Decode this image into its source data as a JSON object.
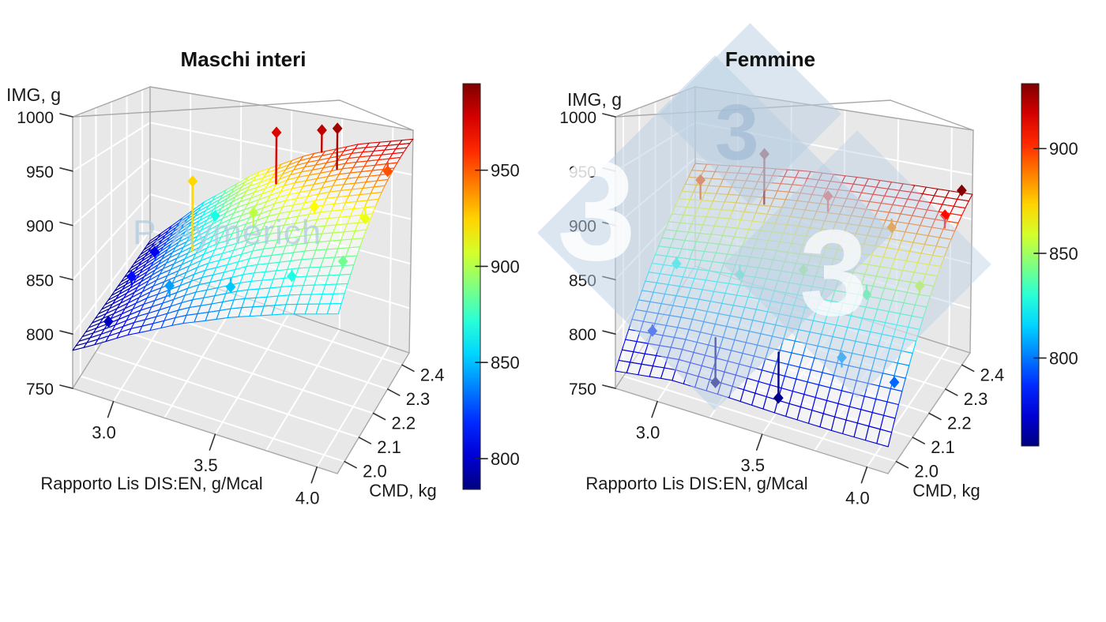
{
  "figure": {
    "background": "#ffffff"
  },
  "watermark_logo": {
    "glyphs": [
      "3",
      "3",
      "3"
    ],
    "color": "#b7cde2"
  },
  "chart_data": [
    {
      "type": "surface3d-wireframe",
      "title": "Maschi interi",
      "xlabel": "Rapporto Lis DIS:EN, g/Mcal",
      "ylabel": "CMD, kg",
      "zlabel": "IMG, g",
      "watermark": "P. Aymerich",
      "colormap": "jet",
      "x_range": [
        2.8,
        4.1
      ],
      "y_range": [
        1.95,
        2.45
      ],
      "z_range": [
        750,
        1000
      ],
      "x_ticks": [
        "3.0",
        "3.5",
        "4.0"
      ],
      "x_tick_values": [
        3.0,
        3.5,
        4.0
      ],
      "y_ticks": [
        "2.0",
        "2.1",
        "2.2",
        "2.3",
        "2.4"
      ],
      "y_tick_values": [
        2.0,
        2.1,
        2.2,
        2.3,
        2.4
      ],
      "z_ticks": [
        "750",
        "800",
        "850",
        "900",
        "950",
        "1000"
      ],
      "z_tick_values": [
        750,
        800,
        850,
        900,
        950,
        1000
      ],
      "x_grid_values": [
        3.0,
        3.25,
        3.5,
        3.75,
        4.0
      ],
      "y_grid_values": [
        2.0,
        2.1,
        2.2,
        2.3,
        2.4
      ],
      "z_grid_values": [
        800,
        850,
        900,
        950
      ],
      "surface_x": [
        2.8,
        3.06,
        3.32,
        3.58,
        3.84,
        4.1
      ],
      "surface_y": [
        1.95,
        2.05,
        2.15,
        2.25,
        2.35,
        2.45
      ],
      "surface_z": [
        [
          785,
          810,
          829,
          842,
          851,
          857
        ],
        [
          785,
          819,
          846,
          864,
          875,
          883
        ],
        [
          785,
          829,
          863,
          886,
          900,
          910
        ],
        [
          785,
          838,
          879,
          907,
          925,
          937
        ],
        [
          785,
          847,
          896,
          929,
          949,
          963
        ],
        [
          785,
          857,
          912,
          949,
          974,
          990
        ]
      ],
      "points": [
        {
          "x": 2.9,
          "y": 2.05,
          "img": 797
        },
        {
          "x": 2.9,
          "y": 2.2,
          "img": 812
        },
        {
          "x": 2.9,
          "y": 2.35,
          "img": 806
        },
        {
          "x": 3.2,
          "y": 2.05,
          "img": 843
        },
        {
          "x": 3.2,
          "y": 2.2,
          "img": 924
        },
        {
          "x": 3.2,
          "y": 2.35,
          "img": 868
        },
        {
          "x": 3.5,
          "y": 2.05,
          "img": 852
        },
        {
          "x": 3.5,
          "y": 2.2,
          "img": 902
        },
        {
          "x": 3.5,
          "y": 2.35,
          "img": 975
        },
        {
          "x": 3.8,
          "y": 2.05,
          "img": 869
        },
        {
          "x": 3.8,
          "y": 2.2,
          "img": 916
        },
        {
          "x": 3.8,
          "y": 2.35,
          "img": 988
        },
        {
          "x": 4.05,
          "y": 2.05,
          "img": 886
        },
        {
          "x": 4.05,
          "y": 2.2,
          "img": 912
        },
        {
          "x": 4.05,
          "y": 2.35,
          "img": 952
        },
        {
          "x": 3.65,
          "y": 2.45,
          "img": 982
        }
      ],
      "colorbar": {
        "tick_labels": [
          "950",
          "900",
          "850",
          "800"
        ],
        "tick_values": [
          950,
          900,
          850,
          800
        ],
        "vmin": 784,
        "vmax": 995
      }
    },
    {
      "type": "surface3d-wireframe",
      "title": "Femmine",
      "xlabel": "Rapporto Lis DIS:EN, g/Mcal",
      "ylabel": "CMD, kg",
      "zlabel": "IMG, g",
      "watermark": "",
      "colormap": "jet",
      "x_range": [
        2.8,
        4.1
      ],
      "y_range": [
        1.95,
        2.45
      ],
      "z_range": [
        750,
        1000
      ],
      "x_ticks": [
        "3.0",
        "3.5",
        "4.0"
      ],
      "x_tick_values": [
        3.0,
        3.5,
        4.0
      ],
      "y_ticks": [
        "2.0",
        "2.1",
        "2.2",
        "2.3",
        "2.4"
      ],
      "y_tick_values": [
        2.0,
        2.1,
        2.2,
        2.3,
        2.4
      ],
      "z_ticks": [
        "750",
        "800",
        "850",
        "900",
        "950",
        "1000"
      ],
      "z_tick_values": [
        750,
        800,
        850,
        900,
        950,
        1000
      ],
      "x_grid_values": [
        3.0,
        3.25,
        3.5,
        3.75,
        4.0
      ],
      "y_grid_values": [
        2.0,
        2.1,
        2.2,
        2.3,
        2.4
      ],
      "z_grid_values": [
        800,
        850,
        900,
        950
      ],
      "surface_x": [
        2.8,
        3.06,
        3.32,
        3.58,
        3.84,
        4.1
      ],
      "surface_y": [
        1.95,
        2.05,
        2.15,
        2.25,
        2.35,
        2.45
      ],
      "surface_z": [
        [
          766,
          772,
          771,
          769,
          768,
          768
        ],
        [
          792,
          796,
          797,
          798,
          799,
          800
        ],
        [
          818,
          823,
          827,
          829,
          831,
          832
        ],
        [
          843,
          850,
          856,
          860,
          862,
          864
        ],
        [
          868,
          878,
          885,
          890,
          894,
          896
        ],
        [
          893,
          905,
          915,
          921,
          925,
          928
        ]
      ],
      "points": [
        {
          "x": 2.9,
          "y": 2.05,
          "img": 788
        },
        {
          "x": 2.9,
          "y": 2.2,
          "img": 826
        },
        {
          "x": 2.9,
          "y": 2.35,
          "img": 895
        },
        {
          "x": 3.2,
          "y": 2.05,
          "img": 757
        },
        {
          "x": 3.2,
          "y": 2.2,
          "img": 830
        },
        {
          "x": 3.2,
          "y": 2.35,
          "img": 940
        },
        {
          "x": 3.5,
          "y": 2.05,
          "img": 760
        },
        {
          "x": 3.5,
          "y": 2.2,
          "img": 848
        },
        {
          "x": 3.5,
          "y": 2.35,
          "img": 905
        },
        {
          "x": 3.8,
          "y": 2.05,
          "img": 806
        },
        {
          "x": 3.8,
          "y": 2.2,
          "img": 838
        },
        {
          "x": 3.8,
          "y": 2.35,
          "img": 885
        },
        {
          "x": 4.05,
          "y": 2.05,
          "img": 797
        },
        {
          "x": 4.05,
          "y": 2.2,
          "img": 855
        },
        {
          "x": 4.05,
          "y": 2.35,
          "img": 908
        },
        {
          "x": 4.05,
          "y": 2.45,
          "img": 930
        }
      ],
      "colorbar": {
        "tick_labels": [
          "900",
          "850",
          "800"
        ],
        "tick_values": [
          900,
          850,
          800
        ],
        "vmin": 758,
        "vmax": 931
      }
    }
  ]
}
